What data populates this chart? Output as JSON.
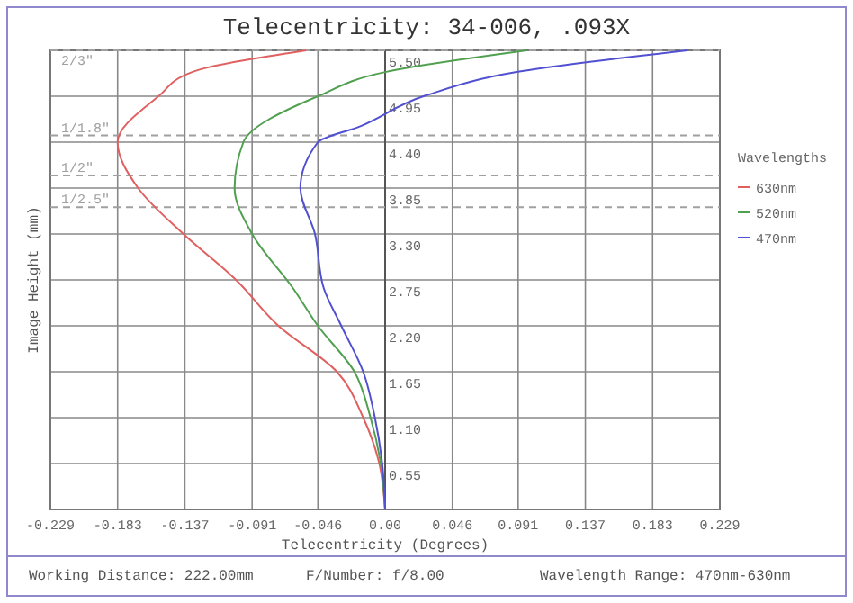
{
  "chart_data": {
    "type": "line",
    "title": "Telecentricity: 34-006, .093X",
    "xlabel": "Telecentricity (Degrees)",
    "ylabel": "Image Height (mm)",
    "legend_title": "Wavelengths",
    "legend": "right",
    "grid": true,
    "marker": "none",
    "line_style": "solid",
    "xlim": [
      -0.229,
      0.229
    ],
    "xticks": [
      -0.229,
      -0.183,
      -0.137,
      -0.091,
      -0.046,
      {
        "value": 0,
        "label": "0.00"
      },
      0.046,
      0.091,
      0.137,
      0.183,
      0.229
    ],
    "ylim": [
      0,
      5.5
    ],
    "yticks": [
      {
        "value": 0.55,
        "label": "0.55"
      },
      {
        "value": 1.1,
        "label": "1.10"
      },
      {
        "value": 1.65,
        "label": "1.65"
      },
      {
        "value": 2.2,
        "label": "2.20"
      },
      {
        "value": 2.75,
        "label": "2.75"
      },
      {
        "value": 3.3,
        "label": "3.30"
      },
      {
        "value": 3.85,
        "label": "3.85"
      },
      {
        "value": 4.4,
        "label": "4.40"
      },
      {
        "value": 4.95,
        "label": "4.95"
      },
      {
        "value": 5.5,
        "label": "5.50"
      }
    ],
    "series": [
      {
        "name": "630nm",
        "color": "#e06060",
        "x": [
          0,
          -0.004,
          -0.015,
          -0.033,
          -0.073,
          -0.102,
          -0.138,
          -0.169,
          -0.183,
          -0.155,
          -0.132,
          -0.054
        ],
        "values": [
          0,
          0.55,
          1.1,
          1.65,
          2.2,
          2.75,
          3.3,
          3.85,
          4.4,
          4.95,
          5.24,
          5.5
        ]
      },
      {
        "name": "520nm",
        "color": "#50a050",
        "x": [
          0,
          -0.003,
          -0.01,
          -0.021,
          -0.046,
          -0.063,
          -0.091,
          -0.103,
          -0.097,
          -0.046,
          0,
          0.097
        ],
        "values": [
          0,
          0.55,
          1.1,
          1.65,
          2.2,
          2.65,
          3.3,
          3.85,
          4.4,
          4.95,
          5.24,
          5.5
        ]
      },
      {
        "name": "470nm",
        "color": "#5050d0",
        "x": [
          0,
          -0.002,
          -0.007,
          -0.015,
          -0.03,
          -0.042,
          -0.048,
          -0.058,
          -0.046,
          -0.017,
          0.028,
          0.09,
          0.207
        ],
        "values": [
          0,
          0.55,
          1.1,
          1.65,
          2.2,
          2.65,
          3.3,
          3.85,
          4.4,
          4.59,
          4.96,
          5.24,
          5.5
        ]
      }
    ],
    "ref_lines": [
      {
        "axis": "y",
        "value": 5.5,
        "color": "#a0a0a0",
        "line_style": "dashed"
      },
      {
        "axis": "y",
        "value": 4.48,
        "color": "#a0a0a0",
        "line_style": "dashed"
      },
      {
        "axis": "y",
        "value": 4.0,
        "color": "#a0a0a0",
        "line_style": "dashed"
      },
      {
        "axis": "y",
        "value": 3.62,
        "color": "#a0a0a0",
        "line_style": "dashed"
      }
    ],
    "annotations": [
      "Working Distance: 222.00mm",
      "F/Number: f/8.00",
      "Wavelength Range: 470nm-630nm",
      {
        "text": "2/3\"",
        "y": 5.5
      },
      {
        "text": "1/1.8\"",
        "y": 4.48
      },
      {
        "text": "1/2\"",
        "y": 4.0
      },
      {
        "text": "1/2.5\"",
        "y": 3.62
      }
    ]
  }
}
